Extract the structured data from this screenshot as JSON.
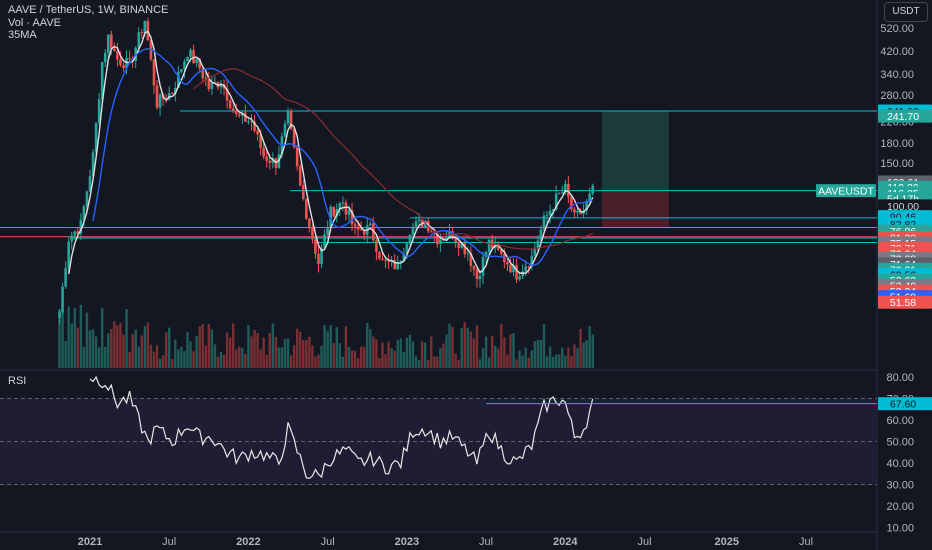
{
  "header": {
    "symbol_line": "AAVE / TetherUS, 1W, BINANCE",
    "volume_line": "Vol · AAVE",
    "sma_line": "35MA",
    "currency": "USDT"
  },
  "rsi_pane": {
    "label": "RSI"
  },
  "colors": {
    "background": "#131722",
    "up": "#26a69a",
    "down": "#ef5350",
    "blue_line": "#2962ff",
    "level_line": "#00bcd4",
    "white_line": "#e0e0e0",
    "maroon": "#8d2b32",
    "target_zone": "#1b3b3a",
    "stop_zone": "#4a1f2a"
  },
  "chart_data": {
    "type": "candlestick",
    "title": "AAVE / TetherUS, 1W, BINANCE",
    "y_scale": "log",
    "price_ticks": [
      520,
      420,
      340,
      280,
      220,
      180,
      150,
      120,
      100
    ],
    "x_tick_labels": [
      "2021",
      "Jul",
      "2022",
      "Jul",
      "2023",
      "Jul",
      "2024",
      "Jul",
      "2025",
      "Jul"
    ],
    "x_tick_dates": [
      "2021-01-04",
      "2021-07-05",
      "2022-01-03",
      "2022-07-04",
      "2023-01-02",
      "2023-07-03",
      "2024-01-01",
      "2024-07-01",
      "2025-01-06",
      "2025-07-07"
    ],
    "price_anchors": [
      {
        "date": "2020-10-26",
        "price": 38
      },
      {
        "date": "2020-11-16",
        "price": 75
      },
      {
        "date": "2020-12-14",
        "price": 85
      },
      {
        "date": "2021-01-11",
        "price": 160
      },
      {
        "date": "2021-02-01",
        "price": 380
      },
      {
        "date": "2021-02-15",
        "price": 480
      },
      {
        "date": "2021-03-08",
        "price": 390
      },
      {
        "date": "2021-04-05",
        "price": 370
      },
      {
        "date": "2021-05-10",
        "price": 560
      },
      {
        "date": "2021-06-07",
        "price": 260
      },
      {
        "date": "2021-07-12",
        "price": 290
      },
      {
        "date": "2021-08-16",
        "price": 420
      },
      {
        "date": "2021-09-13",
        "price": 360
      },
      {
        "date": "2021-10-04",
        "price": 300
      },
      {
        "date": "2021-11-01",
        "price": 320
      },
      {
        "date": "2021-12-06",
        "price": 230
      },
      {
        "date": "2022-01-10",
        "price": 220
      },
      {
        "date": "2022-02-07",
        "price": 160
      },
      {
        "date": "2022-03-07",
        "price": 150
      },
      {
        "date": "2022-04-04",
        "price": 230
      },
      {
        "date": "2022-05-02",
        "price": 120
      },
      {
        "date": "2022-06-13",
        "price": 60
      },
      {
        "date": "2022-07-11",
        "price": 95
      },
      {
        "date": "2022-08-08",
        "price": 105
      },
      {
        "date": "2022-09-05",
        "price": 80
      },
      {
        "date": "2022-10-10",
        "price": 82
      },
      {
        "date": "2022-11-07",
        "price": 60
      },
      {
        "date": "2022-12-12",
        "price": 58
      },
      {
        "date": "2023-01-09",
        "price": 82
      },
      {
        "date": "2023-02-13",
        "price": 88
      },
      {
        "date": "2023-03-13",
        "price": 75
      },
      {
        "date": "2023-04-17",
        "price": 78
      },
      {
        "date": "2023-05-22",
        "price": 66
      },
      {
        "date": "2023-06-12",
        "price": 52
      },
      {
        "date": "2023-07-10",
        "price": 72
      },
      {
        "date": "2023-08-14",
        "price": 62
      },
      {
        "date": "2023-09-11",
        "price": 54
      },
      {
        "date": "2023-10-16",
        "price": 63
      },
      {
        "date": "2023-11-13",
        "price": 88
      },
      {
        "date": "2023-12-11",
        "price": 108
      },
      {
        "date": "2024-01-01",
        "price": 118
      },
      {
        "date": "2024-01-22",
        "price": 90
      },
      {
        "date": "2024-02-12",
        "price": 97
      },
      {
        "date": "2024-03-04",
        "price": 116
      }
    ],
    "horizontal_levels": [
      241.98,
      116.25,
      90.46,
      82.82,
      76.06,
      75.15,
      72.08
    ],
    "position_tool": {
      "start": "2024-03-25",
      "end": "2024-08-26",
      "entry": 116.25,
      "target": 241.98,
      "stop": 82.82
    },
    "price_labels": [
      {
        "value": "241.98",
        "bg": "#00bcd4",
        "fg": "#131722",
        "price": 241.98
      },
      {
        "value": "241.70",
        "bg": "#26a69a",
        "fg": "#ffffff",
        "price": 231
      },
      {
        "value": "122.61",
        "bg": "#5d606b",
        "fg": "#ffffff",
        "price": 126
      },
      {
        "value": "119.39",
        "bg": "#26a69a",
        "fg": "#ffffff",
        "price": 120
      },
      {
        "value": "116.25",
        "bg": "#26a69a",
        "fg": "#ffffff",
        "price": 114
      },
      {
        "value": "5d 17h",
        "bg": "#26a69a",
        "fg": "#ffffff",
        "price": 108
      },
      {
        "value": "100.00",
        "bg": "#131722",
        "fg": "#d1d4dc",
        "price": 101
      },
      {
        "value": "90.46",
        "bg": "#00bcd4",
        "fg": "#131722",
        "price": 91.5
      },
      {
        "value": "82.82",
        "bg": "#00bcd4",
        "fg": "#131722",
        "price": 85.5
      },
      {
        "value": "76.06",
        "bg": "#26a69a",
        "fg": "#ffffff",
        "price": 80
      },
      {
        "value": "81.30",
        "bg": "#ef5350",
        "fg": "#ffffff",
        "price": 75.5
      },
      {
        "value": "75.15",
        "bg": "#787b86",
        "fg": "#ffffff",
        "price": 71.8
      },
      {
        "value": "73.71",
        "bg": "#ef5350",
        "fg": "#ffffff",
        "price": 68.5
      },
      {
        "value": "72.24",
        "bg": "#ef5350",
        "fg": "#ffffff",
        "price": 65.3
      },
      {
        "value": "72.08",
        "bg": "#787b86",
        "fg": "#ffffff",
        "price": 62.2
      },
      {
        "value": "71.64",
        "bg": "#5d606b",
        "fg": "#ffffff",
        "price": 59.2
      },
      {
        "value": "70.31",
        "bg": "#26a69a",
        "fg": "#ffffff",
        "price": 56.3
      },
      {
        "value": "62.56",
        "bg": "#00bcd4",
        "fg": "#131722",
        "price": 53.6
      },
      {
        "value": "53.63",
        "bg": "#26a69a",
        "fg": "#ffffff",
        "price": 51
      },
      {
        "value": "53.40",
        "bg": "#787b86",
        "fg": "#ffffff",
        "price": 48.5
      },
      {
        "value": "53.34",
        "bg": "#ef5350",
        "fg": "#ffffff",
        "price": 46.1
      },
      {
        "value": "51.69",
        "bg": "#2962ff",
        "fg": "#ffffff",
        "price": 43.8
      },
      {
        "value": "51.58",
        "bg": "#ef5350",
        "fg": "#ffffff",
        "price": 41.6
      }
    ],
    "symbol_tag": "AAVEUSDT",
    "rsi": {
      "ticks": [
        80,
        70,
        60,
        50,
        40,
        30,
        20,
        10
      ],
      "band": [
        30,
        70
      ],
      "current": "67.60",
      "level": 67.6,
      "level_start": "2023-07-03",
      "anchors": [
        {
          "date": "2021-01-04",
          "value": 80
        },
        {
          "date": "2021-02-08",
          "value": 78
        },
        {
          "date": "2021-03-08",
          "value": 68
        },
        {
          "date": "2021-04-05",
          "value": 70
        },
        {
          "date": "2021-05-17",
          "value": 50
        },
        {
          "date": "2021-06-07",
          "value": 56
        },
        {
          "date": "2021-07-12",
          "value": 50
        },
        {
          "date": "2021-08-16",
          "value": 58
        },
        {
          "date": "2021-09-13",
          "value": 52
        },
        {
          "date": "2021-10-11",
          "value": 52
        },
        {
          "date": "2021-11-15",
          "value": 45
        },
        {
          "date": "2021-12-13",
          "value": 42
        },
        {
          "date": "2022-01-10",
          "value": 45
        },
        {
          "date": "2022-02-07",
          "value": 44
        },
        {
          "date": "2022-03-14",
          "value": 40
        },
        {
          "date": "2022-04-04",
          "value": 56
        },
        {
          "date": "2022-05-16",
          "value": 35
        },
        {
          "date": "2022-06-13",
          "value": 34
        },
        {
          "date": "2022-07-11",
          "value": 42
        },
        {
          "date": "2022-08-15",
          "value": 46
        },
        {
          "date": "2022-09-12",
          "value": 40
        },
        {
          "date": "2022-10-17",
          "value": 42
        },
        {
          "date": "2022-11-14",
          "value": 38
        },
        {
          "date": "2022-12-19",
          "value": 40
        },
        {
          "date": "2023-01-16",
          "value": 55
        },
        {
          "date": "2023-02-13",
          "value": 56
        },
        {
          "date": "2023-03-20",
          "value": 50
        },
        {
          "date": "2023-04-17",
          "value": 52
        },
        {
          "date": "2023-05-22",
          "value": 45
        },
        {
          "date": "2023-06-12",
          "value": 40
        },
        {
          "date": "2023-07-10",
          "value": 55
        },
        {
          "date": "2023-08-14",
          "value": 44
        },
        {
          "date": "2023-09-11",
          "value": 40
        },
        {
          "date": "2023-10-16",
          "value": 48
        },
        {
          "date": "2023-11-13",
          "value": 66
        },
        {
          "date": "2023-12-11",
          "value": 70
        },
        {
          "date": "2024-01-01",
          "value": 68
        },
        {
          "date": "2024-01-22",
          "value": 52
        },
        {
          "date": "2024-02-12",
          "value": 56
        },
        {
          "date": "2024-03-04",
          "value": 67.6
        }
      ]
    }
  }
}
